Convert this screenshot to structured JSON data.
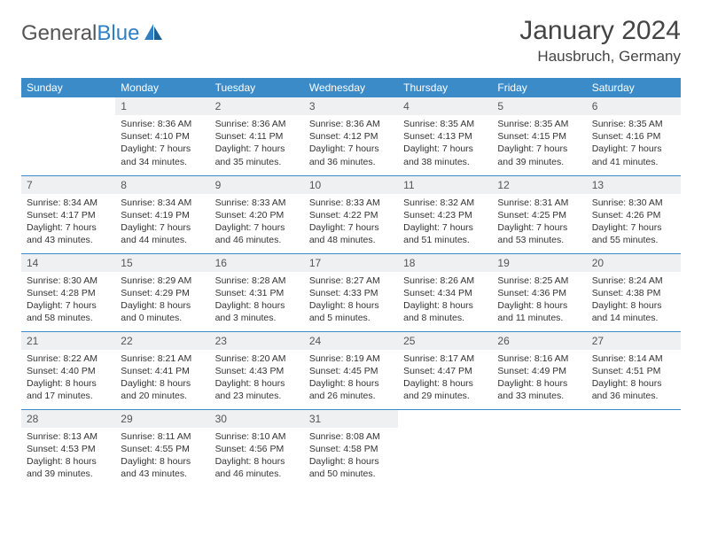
{
  "brand": {
    "part1": "General",
    "part2": "Blue"
  },
  "title": "January 2024",
  "location": "Hausbruch, Germany",
  "colors": {
    "header_bg": "#3b8bc9",
    "header_text": "#ffffff",
    "daynum_bg": "#eef0f2",
    "border": "#3b8bc9",
    "logo_gray": "#555555",
    "logo_blue": "#2f7fc2"
  },
  "dayNames": [
    "Sunday",
    "Monday",
    "Tuesday",
    "Wednesday",
    "Thursday",
    "Friday",
    "Saturday"
  ],
  "weeks": [
    [
      {
        "n": "",
        "sunrise": "",
        "sunset": "",
        "daylight": "",
        "empty": true
      },
      {
        "n": "1",
        "sunrise": "8:36 AM",
        "sunset": "4:10 PM",
        "daylight": "7 hours and 34 minutes."
      },
      {
        "n": "2",
        "sunrise": "8:36 AM",
        "sunset": "4:11 PM",
        "daylight": "7 hours and 35 minutes."
      },
      {
        "n": "3",
        "sunrise": "8:36 AM",
        "sunset": "4:12 PM",
        "daylight": "7 hours and 36 minutes."
      },
      {
        "n": "4",
        "sunrise": "8:35 AM",
        "sunset": "4:13 PM",
        "daylight": "7 hours and 38 minutes."
      },
      {
        "n": "5",
        "sunrise": "8:35 AM",
        "sunset": "4:15 PM",
        "daylight": "7 hours and 39 minutes."
      },
      {
        "n": "6",
        "sunrise": "8:35 AM",
        "sunset": "4:16 PM",
        "daylight": "7 hours and 41 minutes."
      }
    ],
    [
      {
        "n": "7",
        "sunrise": "8:34 AM",
        "sunset": "4:17 PM",
        "daylight": "7 hours and 43 minutes."
      },
      {
        "n": "8",
        "sunrise": "8:34 AM",
        "sunset": "4:19 PM",
        "daylight": "7 hours and 44 minutes."
      },
      {
        "n": "9",
        "sunrise": "8:33 AM",
        "sunset": "4:20 PM",
        "daylight": "7 hours and 46 minutes."
      },
      {
        "n": "10",
        "sunrise": "8:33 AM",
        "sunset": "4:22 PM",
        "daylight": "7 hours and 48 minutes."
      },
      {
        "n": "11",
        "sunrise": "8:32 AM",
        "sunset": "4:23 PM",
        "daylight": "7 hours and 51 minutes."
      },
      {
        "n": "12",
        "sunrise": "8:31 AM",
        "sunset": "4:25 PM",
        "daylight": "7 hours and 53 minutes."
      },
      {
        "n": "13",
        "sunrise": "8:30 AM",
        "sunset": "4:26 PM",
        "daylight": "7 hours and 55 minutes."
      }
    ],
    [
      {
        "n": "14",
        "sunrise": "8:30 AM",
        "sunset": "4:28 PM",
        "daylight": "7 hours and 58 minutes."
      },
      {
        "n": "15",
        "sunrise": "8:29 AM",
        "sunset": "4:29 PM",
        "daylight": "8 hours and 0 minutes."
      },
      {
        "n": "16",
        "sunrise": "8:28 AM",
        "sunset": "4:31 PM",
        "daylight": "8 hours and 3 minutes."
      },
      {
        "n": "17",
        "sunrise": "8:27 AM",
        "sunset": "4:33 PM",
        "daylight": "8 hours and 5 minutes."
      },
      {
        "n": "18",
        "sunrise": "8:26 AM",
        "sunset": "4:34 PM",
        "daylight": "8 hours and 8 minutes."
      },
      {
        "n": "19",
        "sunrise": "8:25 AM",
        "sunset": "4:36 PM",
        "daylight": "8 hours and 11 minutes."
      },
      {
        "n": "20",
        "sunrise": "8:24 AM",
        "sunset": "4:38 PM",
        "daylight": "8 hours and 14 minutes."
      }
    ],
    [
      {
        "n": "21",
        "sunrise": "8:22 AM",
        "sunset": "4:40 PM",
        "daylight": "8 hours and 17 minutes."
      },
      {
        "n": "22",
        "sunrise": "8:21 AM",
        "sunset": "4:41 PM",
        "daylight": "8 hours and 20 minutes."
      },
      {
        "n": "23",
        "sunrise": "8:20 AM",
        "sunset": "4:43 PM",
        "daylight": "8 hours and 23 minutes."
      },
      {
        "n": "24",
        "sunrise": "8:19 AM",
        "sunset": "4:45 PM",
        "daylight": "8 hours and 26 minutes."
      },
      {
        "n": "25",
        "sunrise": "8:17 AM",
        "sunset": "4:47 PM",
        "daylight": "8 hours and 29 minutes."
      },
      {
        "n": "26",
        "sunrise": "8:16 AM",
        "sunset": "4:49 PM",
        "daylight": "8 hours and 33 minutes."
      },
      {
        "n": "27",
        "sunrise": "8:14 AM",
        "sunset": "4:51 PM",
        "daylight": "8 hours and 36 minutes."
      }
    ],
    [
      {
        "n": "28",
        "sunrise": "8:13 AM",
        "sunset": "4:53 PM",
        "daylight": "8 hours and 39 minutes."
      },
      {
        "n": "29",
        "sunrise": "8:11 AM",
        "sunset": "4:55 PM",
        "daylight": "8 hours and 43 minutes."
      },
      {
        "n": "30",
        "sunrise": "8:10 AM",
        "sunset": "4:56 PM",
        "daylight": "8 hours and 46 minutes."
      },
      {
        "n": "31",
        "sunrise": "8:08 AM",
        "sunset": "4:58 PM",
        "daylight": "8 hours and 50 minutes."
      },
      {
        "n": "",
        "sunrise": "",
        "sunset": "",
        "daylight": "",
        "empty": true
      },
      {
        "n": "",
        "sunrise": "",
        "sunset": "",
        "daylight": "",
        "empty": true
      },
      {
        "n": "",
        "sunrise": "",
        "sunset": "",
        "daylight": "",
        "empty": true
      }
    ]
  ],
  "labels": {
    "sunrise": "Sunrise: ",
    "sunset": "Sunset: ",
    "daylight": "Daylight: "
  }
}
